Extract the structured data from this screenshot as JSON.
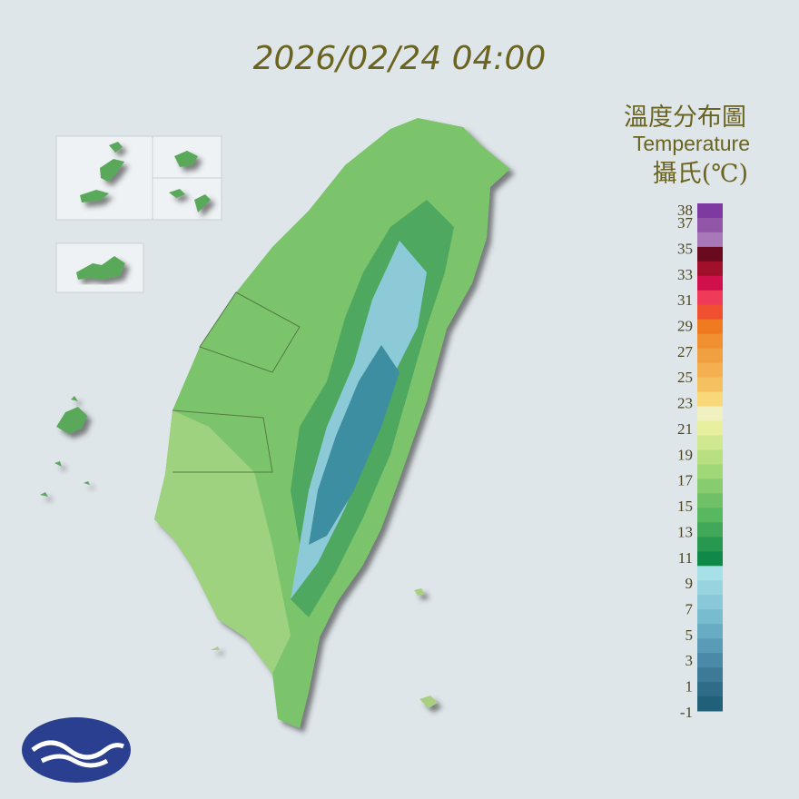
{
  "timestamp": "2026/02/24 04:00",
  "legend": {
    "title": "溫度分布圖",
    "subtitle": "Temperature",
    "unit": "攝氏(℃)",
    "labels": [
      38,
      37,
      35,
      33,
      31,
      29,
      27,
      25,
      23,
      21,
      19,
      17,
      15,
      13,
      11,
      9,
      7,
      5,
      3,
      1,
      -1
    ],
    "colors": [
      "#7e3aa0",
      "#9256a8",
      "#a878b8",
      "#6a0a1e",
      "#a0102a",
      "#d0104a",
      "#f03a5a",
      "#f05030",
      "#f07a20",
      "#f09030",
      "#f0a040",
      "#f4b050",
      "#f4c060",
      "#f8d878",
      "#f0f0c0",
      "#e8f0a0",
      "#d0e890",
      "#b8e080",
      "#a0d878",
      "#88cc70",
      "#70c068",
      "#58b860",
      "#40a858",
      "#289850",
      "#108848",
      "#a8e0e8",
      "#98d4e0",
      "#88c8d8",
      "#78bcd0",
      "#68acc4",
      "#5a9cb8",
      "#4a8aa8",
      "#3c7a98",
      "#2e6c88",
      "#206078"
    ]
  }
}
